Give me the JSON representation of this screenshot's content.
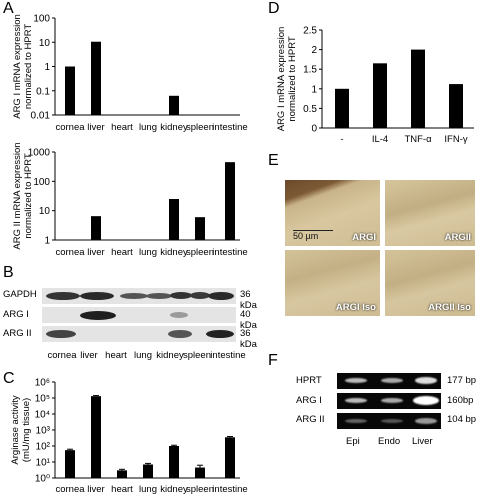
{
  "panels": {
    "A": "A",
    "B": "B",
    "C": "C",
    "D": "D",
    "E": "E",
    "F": "F"
  },
  "chart_data": [
    {
      "id": "A-top",
      "type": "bar",
      "ylabel": "ARG I mRNA expression normalized to HPRT",
      "ylabel_lines": [
        "ARG I mRNA expression",
        "normalized to HPRT"
      ],
      "yscale": "log",
      "ylim": [
        0.01,
        100
      ],
      "yticks": [
        "100",
        "10",
        "1",
        "0.1",
        "0.01"
      ],
      "categories": [
        "cornea",
        "liver",
        "heart",
        "lung",
        "kidney",
        "spleen",
        "intestine"
      ],
      "values": [
        1.0,
        10.5,
        null,
        null,
        0.062,
        null,
        null
      ]
    },
    {
      "id": "A-bottom",
      "type": "bar",
      "ylabel": "ARG II mRNA expression normalized to HPRT",
      "ylabel_lines": [
        "ARG II mRNA expression",
        "normalized to HPRT"
      ],
      "yscale": "log",
      "ylim": [
        1,
        1000
      ],
      "yticks": [
        "1000",
        "100",
        "10",
        "1"
      ],
      "categories": [
        "cornea",
        "liver",
        "heart",
        "lung",
        "kidney",
        "spleen",
        "intestine"
      ],
      "values": [
        null,
        6.5,
        null,
        null,
        25,
        6,
        450
      ]
    },
    {
      "id": "C",
      "type": "bar",
      "ylabel": "Arginase activity (mU/mg tissue)",
      "ylabel_lines": [
        "Arginase activity",
        "(mU/mg tissue)"
      ],
      "yscale": "log",
      "ylim": [
        1,
        1000000
      ],
      "yticks": [
        "10⁶",
        "10⁵",
        "10⁴",
        "10³",
        "10²",
        "10¹",
        "10⁰"
      ],
      "categories": [
        "cornea",
        "liver",
        "heart",
        "lung",
        "kidney",
        "spleen",
        "intestine"
      ],
      "values": [
        55,
        130000,
        3,
        7,
        100,
        4.5,
        350
      ],
      "errors": [
        8,
        12000,
        0.5,
        1.2,
        12,
        1.8,
        40
      ]
    },
    {
      "id": "D",
      "type": "bar",
      "ylabel": "ARG I mRNA expression normalized to HPRT",
      "ylabel_lines": [
        "ARG I mRNA expression",
        "normalized to HPRT"
      ],
      "yscale": "linear",
      "ylim": [
        0,
        2.5
      ],
      "yticks": [
        "2.5",
        "2",
        "1.5",
        "1",
        "0.5",
        "0"
      ],
      "categories": [
        "-",
        "IL-4",
        "TNF-α",
        "IFN-γ"
      ],
      "values": [
        1.0,
        1.65,
        2.0,
        1.12
      ]
    }
  ],
  "panelB": {
    "lanes": [
      "cornea",
      "liver",
      "heart",
      "lung",
      "kidney",
      "spleen",
      "intestine"
    ],
    "rows": [
      {
        "label": "GAPDH",
        "size": "36 kDa"
      },
      {
        "label": "ARG I",
        "size": "40 kDa"
      },
      {
        "label": "ARG II",
        "size": "36 kDa"
      }
    ]
  },
  "panelE": {
    "scale_bar": "50 µm",
    "images": [
      "ARGI",
      "ARGII",
      "ARGI Iso",
      "ARGII Iso"
    ]
  },
  "panelF": {
    "lanes": [
      "Epi",
      "Endo",
      "Liver"
    ],
    "rows": [
      {
        "label": "HPRT",
        "size": "177 bp"
      },
      {
        "label": "ARG I",
        "size": "160bp"
      },
      {
        "label": "ARG II",
        "size": "104 bp"
      }
    ]
  }
}
